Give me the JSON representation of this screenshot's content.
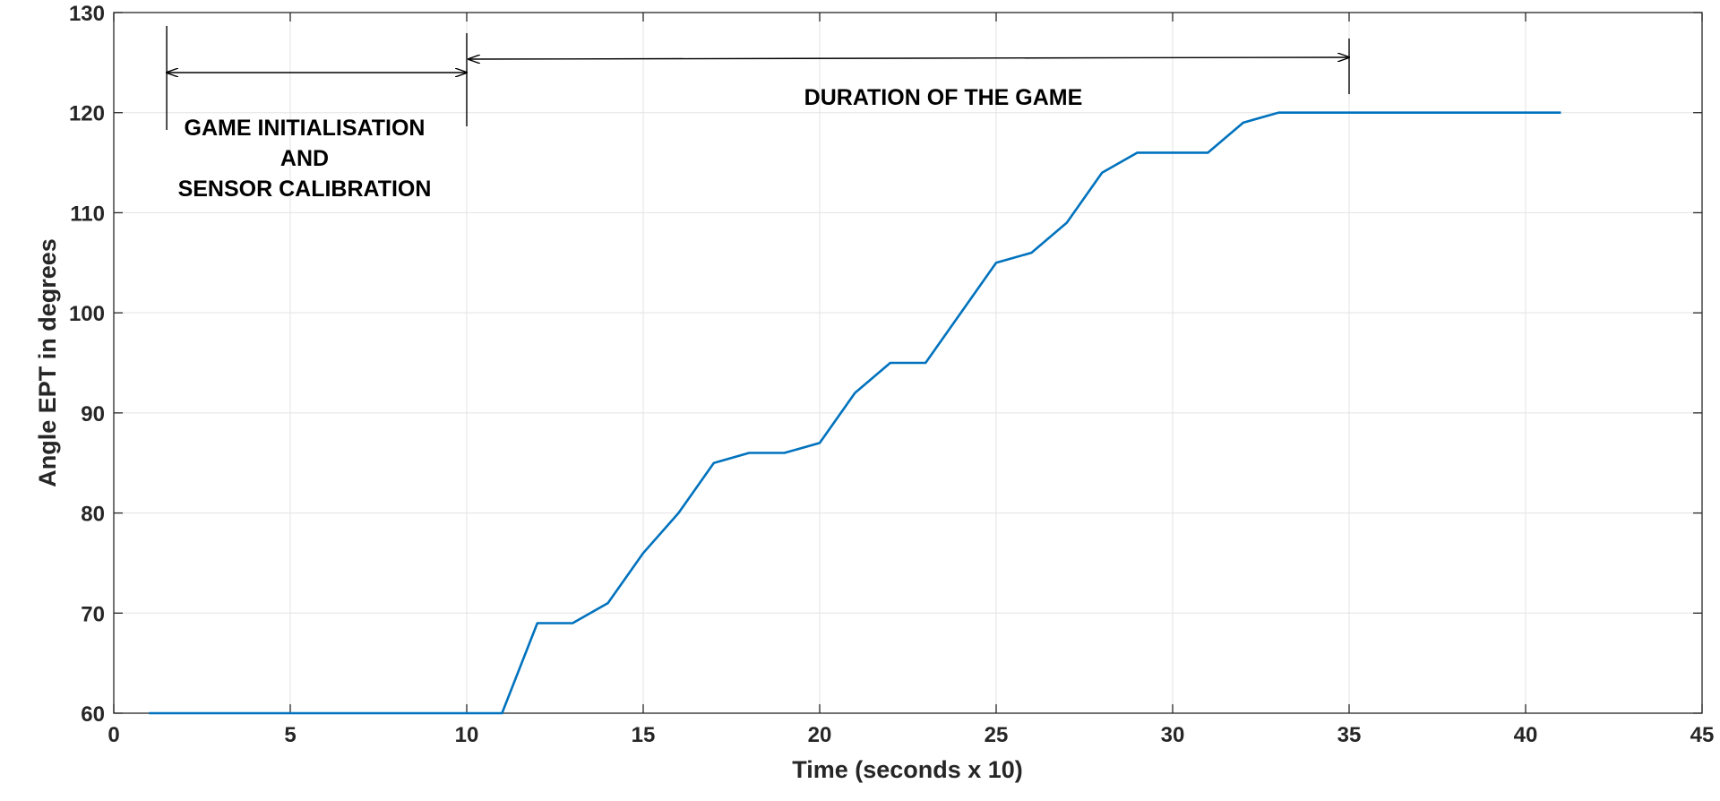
{
  "chart_data": {
    "type": "line",
    "xlabel": "Time (seconds x 10)",
    "ylabel": "Angle EPT in degrees",
    "xlim": [
      0,
      45
    ],
    "ylim": [
      60,
      130
    ],
    "xticks": [
      0,
      5,
      10,
      15,
      20,
      25,
      30,
      35,
      40,
      45
    ],
    "yticks": [
      60,
      70,
      80,
      90,
      100,
      110,
      120,
      130
    ],
    "grid": true,
    "series": [
      {
        "color": "#0072BD",
        "points": [
          [
            1,
            60
          ],
          [
            2,
            60
          ],
          [
            3,
            60
          ],
          [
            4,
            60
          ],
          [
            5,
            60
          ],
          [
            6,
            60
          ],
          [
            7,
            60
          ],
          [
            8,
            60
          ],
          [
            9,
            60
          ],
          [
            10,
            60
          ],
          [
            11,
            60
          ],
          [
            12,
            69
          ],
          [
            13,
            69
          ],
          [
            14,
            71
          ],
          [
            15,
            76
          ],
          [
            16,
            80
          ],
          [
            17,
            85
          ],
          [
            18,
            86
          ],
          [
            19,
            86
          ],
          [
            20,
            87
          ],
          [
            21,
            92
          ],
          [
            22,
            95
          ],
          [
            23,
            95
          ],
          [
            24,
            100
          ],
          [
            25,
            105
          ],
          [
            26,
            106
          ],
          [
            27,
            109
          ],
          [
            28,
            114
          ],
          [
            29,
            116
          ],
          [
            30,
            116
          ],
          [
            31,
            116
          ],
          [
            32,
            119
          ],
          [
            33,
            120
          ],
          [
            34,
            120
          ],
          [
            35,
            120
          ],
          [
            36,
            120
          ],
          [
            37,
            120
          ],
          [
            38,
            120
          ],
          [
            39,
            120
          ],
          [
            40,
            120
          ],
          [
            41,
            120
          ]
        ]
      }
    ],
    "annotations": [
      {
        "name": "initialisation",
        "from_x": 1.5,
        "to_x": 10,
        "lines": [
          "GAME INITIALISATION",
          "AND",
          "SENSOR CALIBRATION"
        ]
      },
      {
        "name": "game-duration",
        "from_x": 10,
        "to_x": 35,
        "lines": [
          "DURATION OF THE GAME"
        ]
      }
    ]
  }
}
